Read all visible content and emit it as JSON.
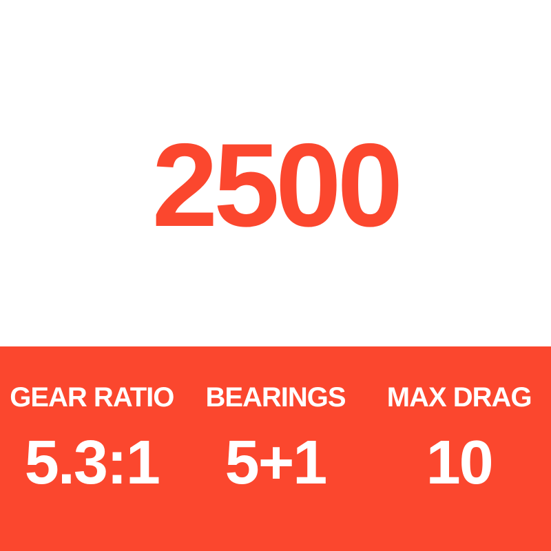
{
  "colors": {
    "accent": "#FB472E",
    "background": "#FFFFFF",
    "text_on_accent": "#FFFFFF"
  },
  "product": {
    "model_number": "2500"
  },
  "spec_banner": {
    "items": [
      {
        "label": "GEAR RATIO",
        "value": "5.3:1"
      },
      {
        "label": "BEARINGS",
        "value": "5+1"
      },
      {
        "label": "MAX DRAG",
        "value": "10"
      }
    ]
  }
}
